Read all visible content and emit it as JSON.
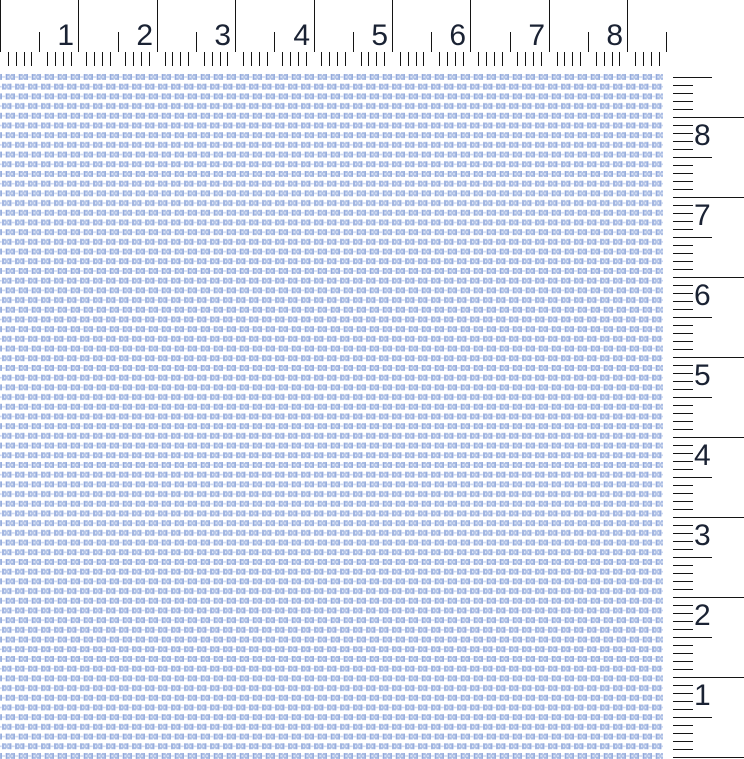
{
  "rulers": {
    "unit": "inches",
    "horizontal": {
      "labels": [
        "1",
        "2",
        "3",
        "4",
        "5",
        "6",
        "7",
        "8"
      ]
    },
    "vertical": {
      "labels": [
        "8",
        "7",
        "6",
        "5",
        "4",
        "3",
        "2",
        "1"
      ]
    }
  },
  "colors": {
    "ruler_tick": "#141414",
    "ruler_number": "#1a2233",
    "background": "#ffffff",
    "stitch_mid": "#a9bce4",
    "stitch_dark": "#8ca3d8",
    "stitch_pale": "#ccd8f2",
    "stitch_highlight": "#e4ebf8"
  }
}
